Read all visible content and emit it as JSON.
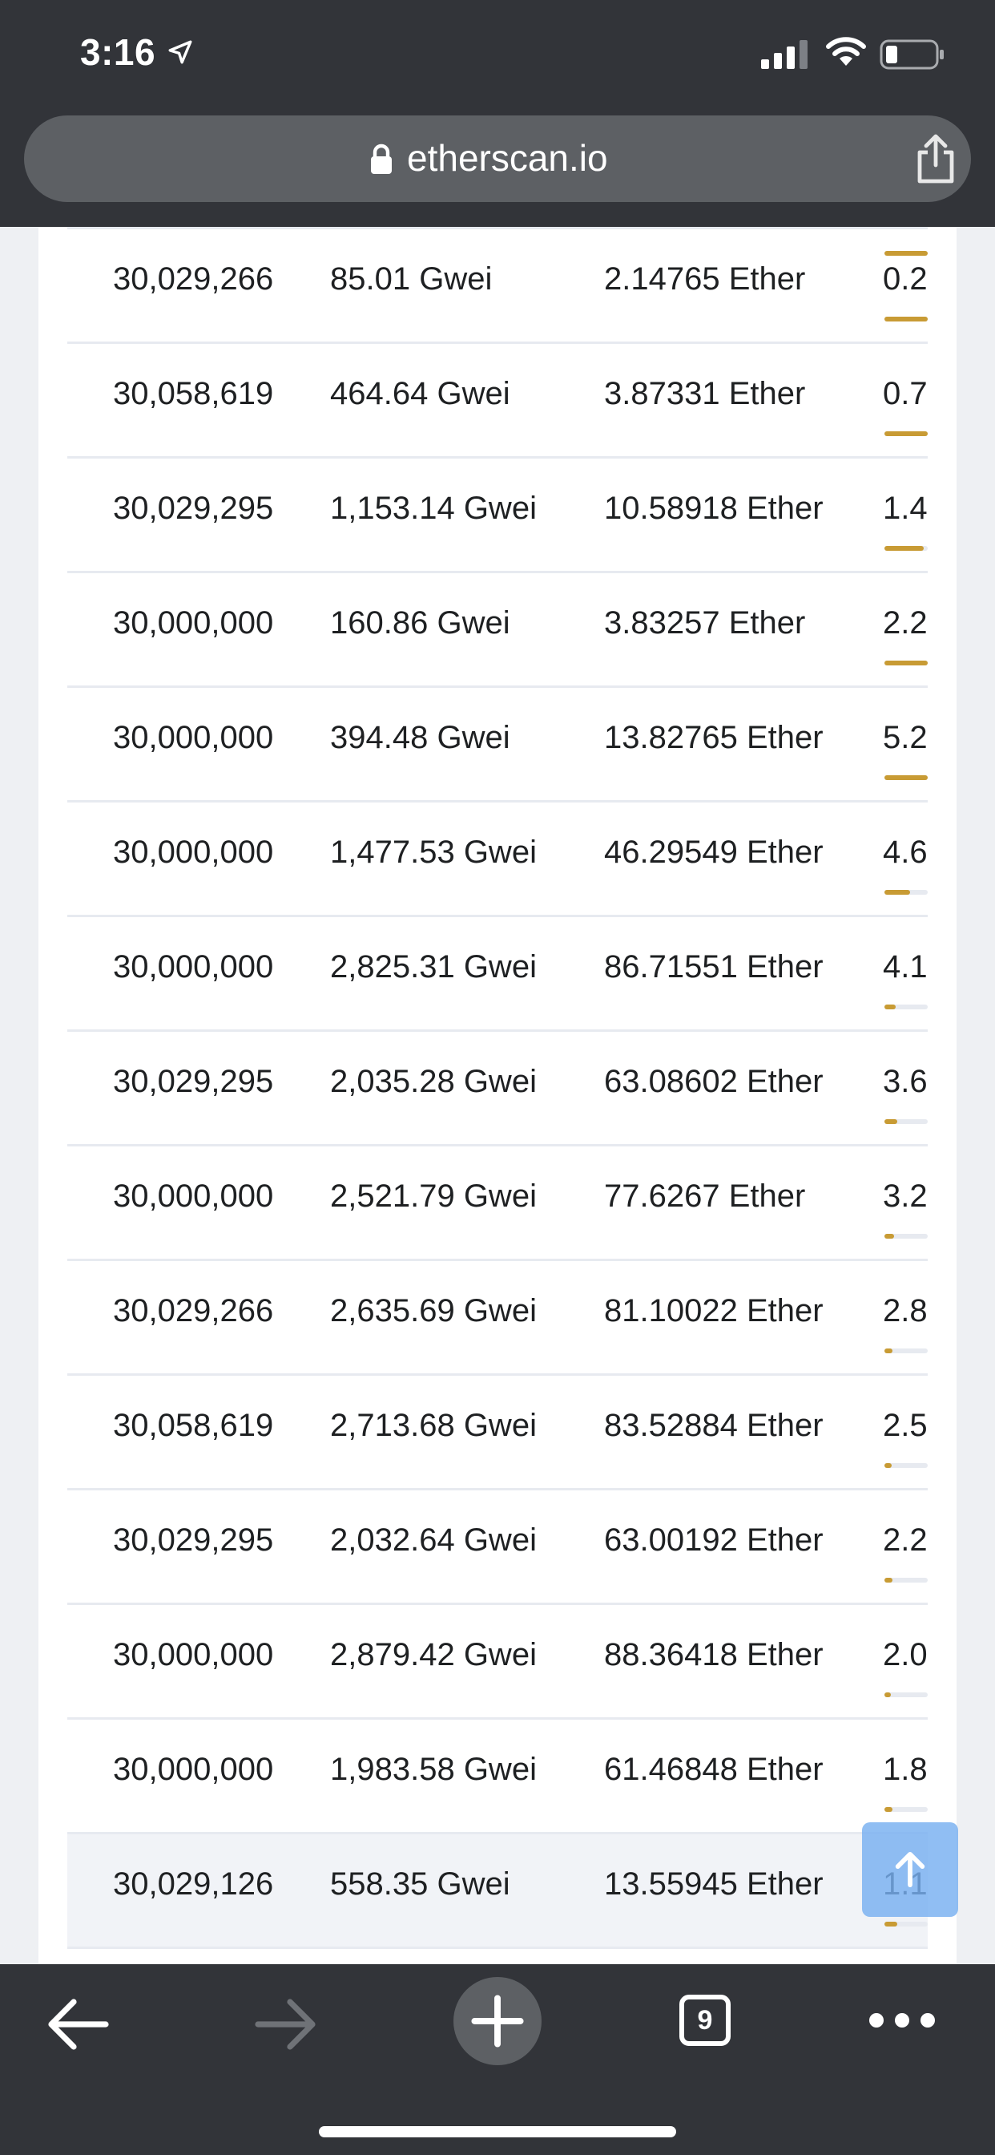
{
  "status_bar": {
    "time": "3:16"
  },
  "browser": {
    "url": "etherscan.io",
    "tabs_count": "9"
  },
  "table": {
    "rows": [
      {
        "gas_limit": "30,029,266",
        "gas_price": "85.01 Gwei",
        "fee": "2.14765 Ether",
        "reward": "0.2",
        "bar_fraction": 1.0
      },
      {
        "gas_limit": "30,058,619",
        "gas_price": "464.64 Gwei",
        "fee": "3.87331 Ether",
        "reward": "0.7",
        "bar_fraction": 1.0
      },
      {
        "gas_limit": "30,029,295",
        "gas_price": "1,153.14 Gwei",
        "fee": "10.58918 Ether",
        "reward": "1.4",
        "bar_fraction": 0.9
      },
      {
        "gas_limit": "30,000,000",
        "gas_price": "160.86 Gwei",
        "fee": "3.83257 Ether",
        "reward": "2.2",
        "bar_fraction": 1.0
      },
      {
        "gas_limit": "30,000,000",
        "gas_price": "394.48 Gwei",
        "fee": "13.82765 Ether",
        "reward": "5.2",
        "bar_fraction": 1.0
      },
      {
        "gas_limit": "30,000,000",
        "gas_price": "1,477.53 Gwei",
        "fee": "46.29549 Ether",
        "reward": "4.6",
        "bar_fraction": 0.6
      },
      {
        "gas_limit": "30,000,000",
        "gas_price": "2,825.31 Gwei",
        "fee": "86.71551 Ether",
        "reward": "4.1",
        "bar_fraction": 0.25
      },
      {
        "gas_limit": "30,029,295",
        "gas_price": "2,035.28 Gwei",
        "fee": "63.08602 Ether",
        "reward": "3.6",
        "bar_fraction": 0.3
      },
      {
        "gas_limit": "30,000,000",
        "gas_price": "2,521.79 Gwei",
        "fee": "77.6267 Ether",
        "reward": "3.2",
        "bar_fraction": 0.22
      },
      {
        "gas_limit": "30,029,266",
        "gas_price": "2,635.69 Gwei",
        "fee": "81.10022 Ether",
        "reward": "2.8",
        "bar_fraction": 0.18
      },
      {
        "gas_limit": "30,058,619",
        "gas_price": "2,713.68 Gwei",
        "fee": "83.52884 Ether",
        "reward": "2.5",
        "bar_fraction": 0.16
      },
      {
        "gas_limit": "30,029,295",
        "gas_price": "2,032.64 Gwei",
        "fee": "63.00192 Ether",
        "reward": "2.2",
        "bar_fraction": 0.18
      },
      {
        "gas_limit": "30,000,000",
        "gas_price": "2,879.42 Gwei",
        "fee": "88.36418 Ether",
        "reward": "2.0",
        "bar_fraction": 0.15
      },
      {
        "gas_limit": "30,000,000",
        "gas_price": "1,983.58 Gwei",
        "fee": "61.46848 Ether",
        "reward": "1.8",
        "bar_fraction": 0.18
      },
      {
        "gas_limit": "30,029,126",
        "gas_price": "558.35 Gwei",
        "fee": "13.55945 Ether",
        "reward": "1.1",
        "bar_fraction": 0.3
      }
    ]
  },
  "icons": {
    "status": [
      "location-arrow-icon",
      "cellular-signal-icon",
      "wifi-icon",
      "battery-icon"
    ],
    "url_bar": [
      "lock-icon",
      "share-icon"
    ],
    "toolbar": [
      "back-arrow-icon",
      "forward-arrow-icon",
      "new-tab-plus-icon",
      "tabs-icon",
      "more-icon"
    ],
    "floating": [
      "arrow-up-icon"
    ]
  },
  "colors": {
    "bar_accent": "#c89b34",
    "chrome": "#323439",
    "scroll_button": "#78b0f0"
  }
}
